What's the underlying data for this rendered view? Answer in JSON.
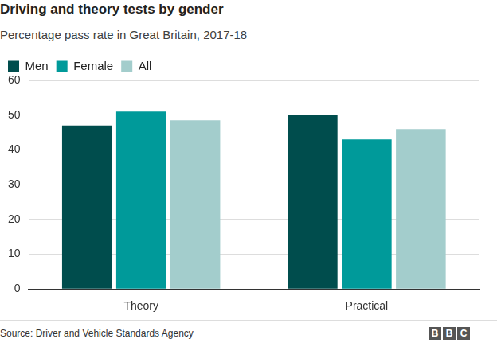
{
  "chart_data": {
    "type": "bar",
    "title": "Driving and theory tests by gender",
    "subtitle": "Percentage pass rate in Great Britain, 2017-18",
    "source": "Source: Driver and Vehicle Standards Agency",
    "logo": "BBC",
    "categories": [
      "Theory",
      "Practical"
    ],
    "series": [
      {
        "name": "Men",
        "color": "#004d4d",
        "values": [
          47,
          50
        ]
      },
      {
        "name": "Female",
        "color": "#009a9a",
        "values": [
          51,
          43
        ]
      },
      {
        "name": "All",
        "color": "#a3cdcc",
        "values": [
          48.5,
          46
        ]
      }
    ],
    "ylim": [
      0,
      60
    ],
    "yticks": [
      0,
      10,
      20,
      30,
      40,
      50,
      60
    ],
    "grid": true,
    "legend": "top-left"
  }
}
